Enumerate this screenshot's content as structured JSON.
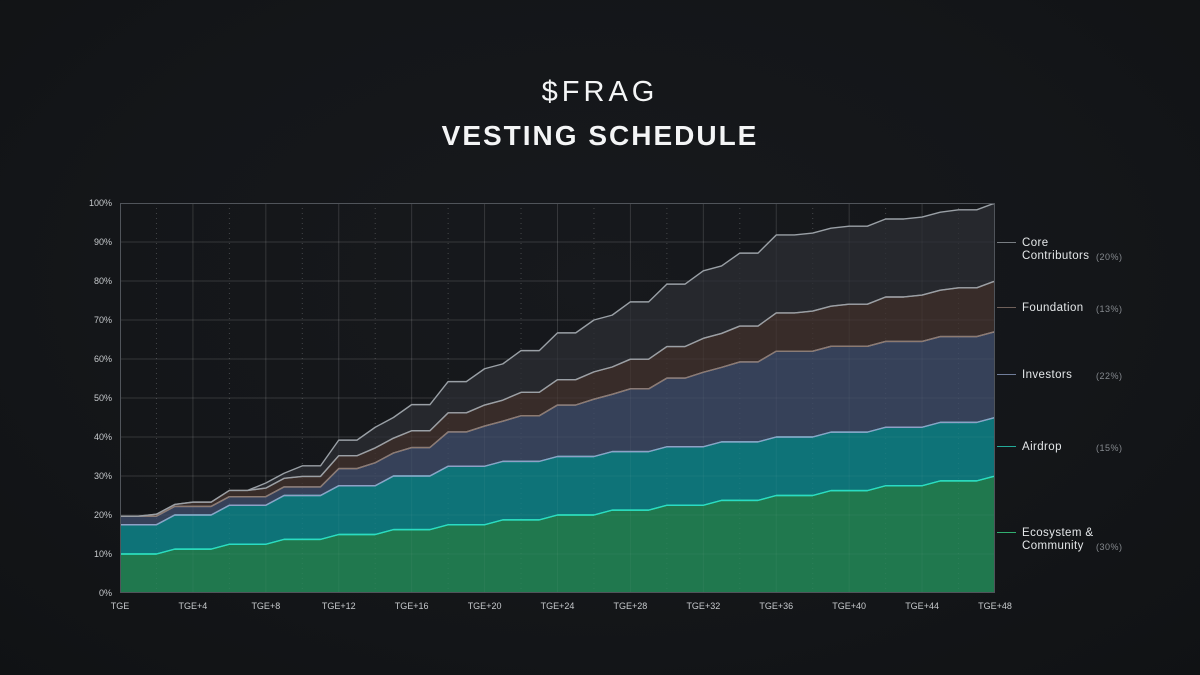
{
  "header": {
    "ticker": "$FRAG",
    "title": "VESTING SCHEDULE"
  },
  "chart_data": {
    "type": "area",
    "stacked": true,
    "title": "$FRAG VESTING SCHEDULE",
    "x_unit": "months after TGE",
    "x_start": 0,
    "x_end": 48,
    "ylim": [
      0,
      100
    ],
    "grid": true,
    "legend_position": "right",
    "x_tick_labels": [
      "TGE",
      "TGE+4",
      "TGE+8",
      "TGE+12",
      "TGE+16",
      "TGE+20",
      "TGE+24",
      "TGE+28",
      "TGE+32",
      "TGE+36",
      "TGE+40",
      "TGE+44",
      "TGE+48"
    ],
    "y_tick_labels": [
      "0%",
      "10%",
      "20%",
      "30%",
      "40%",
      "50%",
      "60%",
      "70%",
      "80%",
      "90%",
      "100%"
    ],
    "series": [
      {
        "name": "Ecosystem & Community",
        "allocation_pct": 30,
        "fill": "#20784e",
        "stroke": "#3ce28e",
        "values": [
          10,
          10,
          10,
          11.25,
          11.25,
          11.25,
          12.5,
          12.5,
          12.5,
          13.75,
          13.75,
          13.75,
          15,
          15,
          15,
          16.25,
          16.25,
          16.25,
          17.5,
          17.5,
          17.5,
          18.75,
          18.75,
          18.75,
          20,
          20,
          20,
          21.25,
          21.25,
          21.25,
          22.5,
          22.5,
          22.5,
          23.75,
          23.75,
          23.75,
          25,
          25,
          25,
          26.25,
          26.25,
          26.25,
          27.5,
          27.5,
          27.5,
          28.75,
          28.75,
          28.75,
          30
        ]
      },
      {
        "name": "Airdrop",
        "allocation_pct": 15,
        "fill": "#0e7378",
        "stroke": "#29dcc4",
        "values": [
          7.5,
          7.5,
          7.5,
          8.75,
          8.75,
          8.75,
          10,
          10,
          10,
          11.25,
          11.25,
          11.25,
          12.5,
          12.5,
          12.5,
          13.75,
          13.75,
          13.75,
          15,
          15,
          15,
          15,
          15,
          15,
          15,
          15,
          15,
          15,
          15,
          15,
          15,
          15,
          15,
          15,
          15,
          15,
          15,
          15,
          15,
          15,
          15,
          15,
          15,
          15,
          15,
          15,
          15,
          15,
          15
        ]
      },
      {
        "name": "Investors",
        "allocation_pct": 22,
        "fill": "#364159",
        "stroke": "#8fa0c6",
        "values": [
          2.2,
          2.2,
          2.2,
          2.2,
          2.2,
          2.2,
          2.2,
          2.2,
          2.2,
          2.2,
          2.2,
          2.2,
          4.4,
          4.4,
          5.9,
          5.9,
          7.3,
          7.3,
          8.8,
          8.8,
          10.3,
          10.3,
          11.7,
          11.7,
          13.2,
          13.2,
          14.7,
          14.7,
          16.1,
          16.1,
          17.6,
          17.6,
          19.1,
          19.1,
          20.5,
          20.5,
          22,
          22,
          22,
          22,
          22,
          22,
          22,
          22,
          22,
          22,
          22,
          22,
          22
        ]
      },
      {
        "name": "Foundation",
        "allocation_pct": 13,
        "fill": "#382c29",
        "stroke": "#8d7a70",
        "values": [
          0,
          0,
          0.5,
          0.5,
          1.1,
          1.1,
          1.6,
          1.6,
          2.2,
          2.2,
          2.7,
          2.7,
          3.3,
          3.3,
          3.8,
          3.8,
          4.3,
          4.3,
          4.9,
          4.9,
          5.4,
          5.4,
          6,
          6,
          6.5,
          6.5,
          7,
          7,
          7.6,
          7.6,
          8.1,
          8.1,
          8.7,
          8.7,
          9.2,
          9.2,
          9.8,
          9.8,
          10.3,
          10.3,
          10.8,
          10.8,
          11.4,
          11.4,
          11.9,
          11.9,
          12.5,
          12.5,
          13
        ]
      },
      {
        "name": "Core Contributors",
        "allocation_pct": 20,
        "fill": "#26282d",
        "stroke": "#9aa0a6",
        "values": [
          0,
          0,
          0,
          0,
          0,
          0,
          0,
          0,
          1.3,
          1.3,
          2.7,
          2.7,
          4,
          4,
          5.3,
          5.3,
          6.7,
          6.7,
          8,
          8,
          9.3,
          9.3,
          10.7,
          10.7,
          12,
          12,
          13.3,
          13.3,
          14.7,
          14.7,
          16,
          16,
          17.3,
          17.3,
          18.7,
          18.7,
          20,
          20,
          20,
          20,
          20,
          20,
          20,
          20,
          20,
          20,
          20,
          20,
          20
        ]
      }
    ]
  },
  "legend": {
    "items": [
      {
        "label": "Core Contributors",
        "pct": "(20%)",
        "color": "#9aa0a6"
      },
      {
        "label": "Foundation",
        "pct": "(13%)",
        "color": "#8d7a70"
      },
      {
        "label": "Investors",
        "pct": "(22%)",
        "color": "#8fa0c6"
      },
      {
        "label": "Airdrop",
        "pct": "(15%)",
        "color": "#29dcc4"
      },
      {
        "label": "Ecosystem & Community",
        "pct": "(30%)",
        "color": "#3ce28e"
      }
    ]
  }
}
